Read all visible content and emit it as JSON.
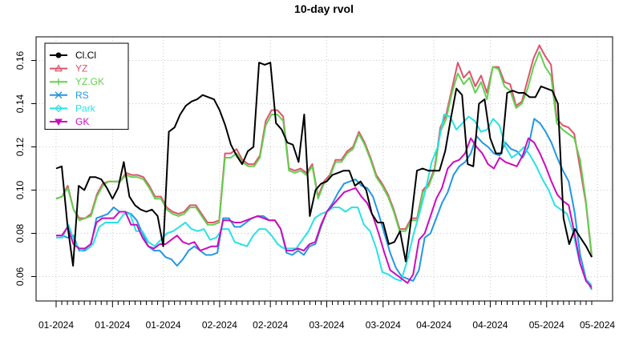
{
  "chart_data": {
    "type": "line",
    "title": "10-day rvol",
    "xlabel": "",
    "ylabel": "",
    "ylim": [
      0.052,
      0.17
    ],
    "y_ticks": [
      0.06,
      0.08,
      0.1,
      0.12,
      0.14,
      0.16
    ],
    "y_tick_labels": [
      "0.06",
      "0.08",
      "0.10",
      "0.12",
      "0.14",
      "0.16"
    ],
    "x_tick_labels": [
      "01-2024",
      "01-2024",
      "01-2024",
      "02-2024",
      "02-2024",
      "03-2024",
      "03-2024",
      "04-2024",
      "04-2024",
      "05-2024",
      "05-2024"
    ],
    "x_tick_positions": [
      0,
      10,
      19,
      29,
      38,
      48,
      58,
      67,
      77,
      87,
      96
    ],
    "grid": true,
    "legend_position": "top-left",
    "series": [
      {
        "name": "Cl.Cl",
        "color": "#000000",
        "marker": "circle",
        "values": [
          0.11,
          0.111,
          0.084,
          0.065,
          0.102,
          0.1,
          0.106,
          0.106,
          0.105,
          0.101,
          0.096,
          0.101,
          0.113,
          0.097,
          0.093,
          0.091,
          0.09,
          0.091,
          0.088,
          0.074,
          0.127,
          0.129,
          0.135,
          0.139,
          0.141,
          0.142,
          0.144,
          0.143,
          0.142,
          0.137,
          0.13,
          0.121,
          0.116,
          0.112,
          0.118,
          0.12,
          0.159,
          0.158,
          0.159,
          0.131,
          0.128,
          0.122,
          0.121,
          0.113,
          0.135,
          0.088,
          0.1,
          0.103,
          0.104,
          0.107,
          0.108,
          0.109,
          0.109,
          0.102,
          0.104,
          0.1,
          0.089,
          0.085,
          0.085,
          0.075,
          0.076,
          0.081,
          0.067,
          0.087,
          0.109,
          0.11,
          0.109,
          0.109,
          0.109,
          0.118,
          0.133,
          0.147,
          0.144,
          0.112,
          0.111,
          0.14,
          0.142,
          0.124,
          0.117,
          0.117,
          0.145,
          0.146,
          0.145,
          0.145,
          0.143,
          0.143,
          0.148,
          0.147,
          0.146,
          0.14,
          0.087,
          0.075,
          0.082,
          0.078,
          0.074,
          0.069
        ]
      },
      {
        "name": "YZ",
        "color": "#DF536B",
        "marker": "triangle",
        "values": [
          0.096,
          0.097,
          0.102,
          0.091,
          0.087,
          0.087,
          0.089,
          0.098,
          0.103,
          0.104,
          0.104,
          0.104,
          0.108,
          0.107,
          0.107,
          0.106,
          0.102,
          0.097,
          0.097,
          0.092,
          0.09,
          0.089,
          0.09,
          0.093,
          0.093,
          0.089,
          0.085,
          0.085,
          0.086,
          0.117,
          0.117,
          0.119,
          0.114,
          0.112,
          0.112,
          0.116,
          0.132,
          0.137,
          0.137,
          0.134,
          0.11,
          0.109,
          0.11,
          0.108,
          0.112,
          0.097,
          0.104,
          0.107,
          0.114,
          0.114,
          0.118,
          0.12,
          0.127,
          0.122,
          0.115,
          0.107,
          0.103,
          0.098,
          0.091,
          0.082,
          0.082,
          0.087,
          0.087,
          0.1,
          0.103,
          0.11,
          0.129,
          0.135,
          0.147,
          0.159,
          0.152,
          0.155,
          0.148,
          0.153,
          0.145,
          0.157,
          0.157,
          0.15,
          0.149,
          0.139,
          0.141,
          0.151,
          0.161,
          0.167,
          0.162,
          0.158,
          0.133,
          0.13,
          0.129,
          0.126,
          0.11,
          0.094,
          0.069
        ]
      },
      {
        "name": "YZ.GK",
        "color": "#61D04F",
        "marker": "plus",
        "values": [
          0.096,
          0.097,
          0.101,
          0.091,
          0.086,
          0.087,
          0.088,
          0.097,
          0.102,
          0.104,
          0.104,
          0.104,
          0.107,
          0.106,
          0.106,
          0.105,
          0.101,
          0.096,
          0.096,
          0.091,
          0.089,
          0.088,
          0.089,
          0.092,
          0.092,
          0.088,
          0.084,
          0.084,
          0.085,
          0.115,
          0.115,
          0.117,
          0.113,
          0.111,
          0.111,
          0.115,
          0.13,
          0.135,
          0.135,
          0.132,
          0.109,
          0.108,
          0.109,
          0.107,
          0.111,
          0.096,
          0.103,
          0.106,
          0.113,
          0.113,
          0.117,
          0.119,
          0.126,
          0.121,
          0.114,
          0.106,
          0.102,
          0.097,
          0.09,
          0.081,
          0.081,
          0.086,
          0.086,
          0.099,
          0.102,
          0.109,
          0.127,
          0.133,
          0.145,
          0.154,
          0.149,
          0.152,
          0.145,
          0.15,
          0.142,
          0.157,
          0.156,
          0.148,
          0.146,
          0.138,
          0.14,
          0.147,
          0.157,
          0.164,
          0.157,
          0.153,
          0.131,
          0.128,
          0.126,
          0.124,
          0.114,
          0.095,
          0.07
        ]
      },
      {
        "name": "RS",
        "color": "#2297E6",
        "marker": "x",
        "values": [
          0.079,
          0.079,
          0.078,
          0.079,
          0.072,
          0.072,
          0.074,
          0.087,
          0.088,
          0.089,
          0.092,
          0.09,
          0.09,
          0.089,
          0.086,
          0.08,
          0.074,
          0.072,
          0.072,
          0.069,
          0.068,
          0.065,
          0.068,
          0.072,
          0.074,
          0.072,
          0.07,
          0.07,
          0.071,
          0.087,
          0.087,
          0.083,
          0.083,
          0.085,
          0.087,
          0.088,
          0.088,
          0.086,
          0.086,
          0.082,
          0.071,
          0.07,
          0.072,
          0.07,
          0.074,
          0.075,
          0.083,
          0.09,
          0.094,
          0.099,
          0.103,
          0.104,
          0.105,
          0.102,
          0.101,
          0.097,
          0.089,
          0.08,
          0.071,
          0.064,
          0.06,
          0.059,
          0.058,
          0.063,
          0.078,
          0.08,
          0.087,
          0.094,
          0.099,
          0.107,
          0.111,
          0.113,
          0.117,
          0.125,
          0.122,
          0.12,
          0.117,
          0.116,
          0.122,
          0.119,
          0.118,
          0.115,
          0.12,
          0.133,
          0.131,
          0.127,
          0.122,
          0.115,
          0.109,
          0.104,
          0.09,
          0.07,
          0.059,
          0.054
        ]
      },
      {
        "name": "Park",
        "color": "#28E2E5",
        "marker": "diamond",
        "values": [
          0.078,
          0.078,
          0.084,
          0.076,
          0.072,
          0.073,
          0.075,
          0.083,
          0.085,
          0.085,
          0.085,
          0.089,
          0.089,
          0.081,
          0.081,
          0.076,
          0.074,
          0.077,
          0.08,
          0.081,
          0.083,
          0.085,
          0.082,
          0.081,
          0.082,
          0.077,
          0.078,
          0.082,
          0.082,
          0.076,
          0.075,
          0.074,
          0.079,
          0.082,
          0.082,
          0.079,
          0.075,
          0.073,
          0.073,
          0.073,
          0.077,
          0.081,
          0.087,
          0.089,
          0.09,
          0.092,
          0.092,
          0.09,
          0.092,
          0.092,
          0.084,
          0.081,
          0.073,
          0.062,
          0.061,
          0.059,
          0.058,
          0.067,
          0.079,
          0.089,
          0.1,
          0.113,
          0.12,
          0.135,
          0.134,
          0.128,
          0.131,
          0.134,
          0.132,
          0.127,
          0.128,
          0.133,
          0.13,
          0.12,
          0.115,
          0.117,
          0.12,
          0.116,
          0.111,
          0.105,
          0.1,
          0.093,
          0.091,
          0.089,
          0.08,
          0.067,
          0.059,
          0.056
        ]
      },
      {
        "name": "GK",
        "color": "#CD0BBC",
        "marker": "triangle-down",
        "values": [
          0.079,
          0.079,
          0.083,
          0.075,
          0.073,
          0.073,
          0.075,
          0.085,
          0.087,
          0.087,
          0.087,
          0.09,
          0.09,
          0.084,
          0.084,
          0.078,
          0.074,
          0.073,
          0.075,
          0.075,
          0.077,
          0.079,
          0.076,
          0.075,
          0.076,
          0.072,
          0.073,
          0.074,
          0.074,
          0.086,
          0.086,
          0.085,
          0.085,
          0.086,
          0.087,
          0.088,
          0.087,
          0.086,
          0.086,
          0.082,
          0.072,
          0.072,
          0.073,
          0.072,
          0.075,
          0.076,
          0.084,
          0.09,
          0.093,
          0.096,
          0.099,
          0.1,
          0.101,
          0.097,
          0.094,
          0.088,
          0.08,
          0.071,
          0.063,
          0.061,
          0.059,
          0.057,
          0.061,
          0.077,
          0.08,
          0.088,
          0.096,
          0.101,
          0.11,
          0.113,
          0.114,
          0.117,
          0.124,
          0.12,
          0.117,
          0.112,
          0.11,
          0.115,
          0.113,
          0.112,
          0.111,
          0.116,
          0.124,
          0.122,
          0.117,
          0.111,
          0.104,
          0.098,
          0.095,
          0.093,
          0.08,
          0.066,
          0.058,
          0.055
        ]
      }
    ]
  }
}
